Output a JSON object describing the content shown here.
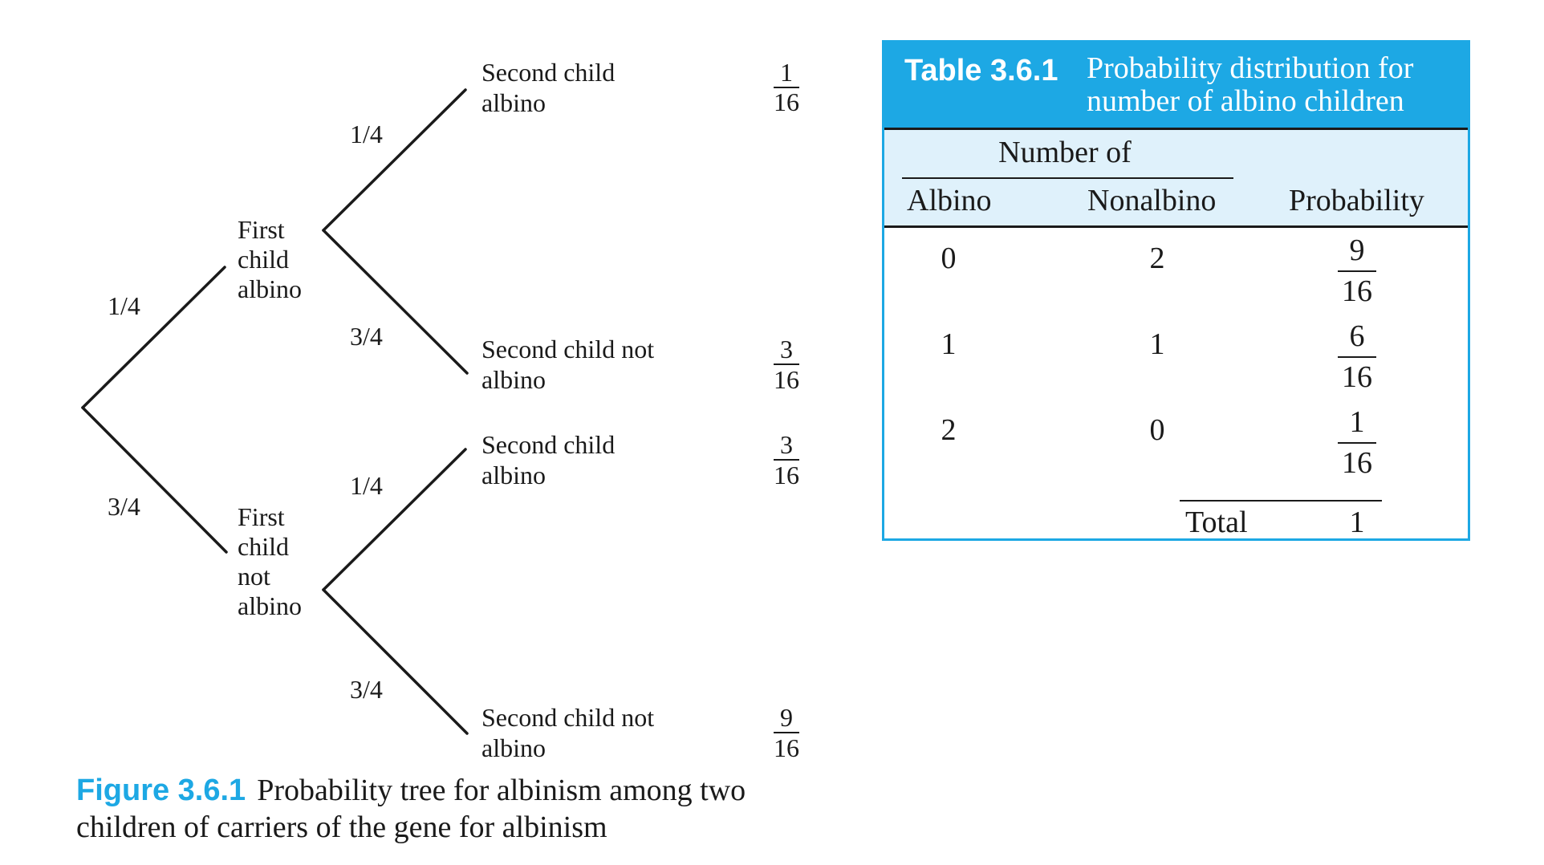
{
  "tree": {
    "root_branches": [
      "1/4",
      "3/4"
    ],
    "first_level": [
      {
        "label": [
          "First",
          "child",
          "albino"
        ],
        "branches": [
          "1/4",
          "3/4"
        ],
        "outcomes": [
          {
            "label": [
              "Second child",
              "albino"
            ],
            "prob": {
              "num": "1",
              "den": "16"
            }
          },
          {
            "label": [
              "Second child not",
              "albino"
            ],
            "prob": {
              "num": "3",
              "den": "16"
            }
          }
        ]
      },
      {
        "label": [
          "First",
          "child",
          "not",
          "albino"
        ],
        "branches": [
          "1/4",
          "3/4"
        ],
        "outcomes": [
          {
            "label": [
              "Second child",
              "albino"
            ],
            "prob": {
              "num": "3",
              "den": "16"
            }
          },
          {
            "label": [
              "Second child not",
              "albino"
            ],
            "prob": {
              "num": "9",
              "den": "16"
            }
          }
        ]
      }
    ]
  },
  "figure_caption": {
    "label": "Figure 3.6.1",
    "text": "Probability tree for albinism among two children of carriers of the gene for albinism"
  },
  "table": {
    "label": "Table 3.6.1",
    "title": "Probability distribution for number of albino children",
    "group_header": "Number of",
    "columns": [
      "Albino",
      "Nonalbino",
      "Probability"
    ],
    "rows": [
      {
        "albino": "0",
        "nonalbino": "2",
        "prob": {
          "num": "9",
          "den": "16"
        }
      },
      {
        "albino": "1",
        "nonalbino": "1",
        "prob": {
          "num": "6",
          "den": "16"
        }
      },
      {
        "albino": "2",
        "nonalbino": "0",
        "prob": {
          "num": "1",
          "den": "16"
        }
      }
    ],
    "total_label": "Total",
    "total_value": "1"
  },
  "colors": {
    "accent": "#1da8e4",
    "header_band": "#dff1fb",
    "text": "#1a1a1a"
  }
}
